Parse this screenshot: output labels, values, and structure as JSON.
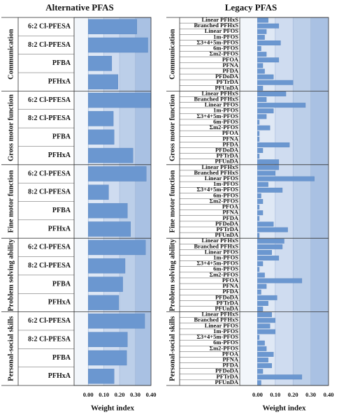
{
  "chart_data": [
    {
      "type": "bar",
      "title": "Alternative PFAS",
      "xlabel": "Weight index",
      "color": "#6b97d0",
      "xlim": [
        -0.09,
        0.4
      ],
      "xticks": [
        {
          "value": 0,
          "label": "0.00"
        },
        {
          "value": 0.1,
          "label": "0.10"
        },
        {
          "value": 0.2,
          "label": "0.20"
        },
        {
          "value": 0.3,
          "label": "0.30"
        },
        {
          "value": 0.4,
          "label": "0.40"
        }
      ],
      "groups": [
        {
          "name": "Communication",
          "categories": [
            "6:2 Cl-PFESA",
            "8:2 Cl-PFESA",
            "PFBA",
            "PFHxA"
          ],
          "values": [
            0.31,
            0.38,
            0.15,
            0.19
          ]
        },
        {
          "name": "Gross motor function",
          "categories": [
            "6:2 Cl-PFESA",
            "8:2 Cl-PFESA",
            "PFBA",
            "PFHxA"
          ],
          "values": [
            0.4,
            0.16,
            0.165,
            0.285
          ]
        },
        {
          "name": "Fine motor function",
          "categories": [
            "6:2 Cl-PFESA",
            "8:2 Cl-PFESA",
            "PFBA",
            "PFHxA"
          ],
          "values": [
            0.37,
            0.13,
            0.25,
            0.27
          ]
        },
        {
          "name": "Problem solving ability",
          "categories": [
            "6:2 Cl-PFESA",
            "8:2 Cl-PFESA",
            "PFBA",
            "PFHxA"
          ],
          "values": [
            0.365,
            0.235,
            0.22,
            0.195
          ]
        },
        {
          "name": "Personal-social skills",
          "categories": [
            "6:2 Cl-PFESA",
            "8:2 Cl-PFESA",
            "PFBA",
            "PFHxA"
          ],
          "values": [
            0.36,
            0.25,
            0.245,
            0.165
          ]
        }
      ]
    },
    {
      "type": "bar",
      "title": "Legacy  PFAS",
      "xlabel": "Weight index",
      "color": "#6b97d0",
      "xlim": [
        -0.1,
        0.4
      ],
      "xticks": [
        {
          "value": 0,
          "label": "0.00"
        },
        {
          "value": 0.1,
          "label": "0.10"
        },
        {
          "value": 0.2,
          "label": "0.20"
        },
        {
          "value": 0.3,
          "label": "0.30"
        },
        {
          "value": 0.4,
          "label": "0.40"
        }
      ],
      "groups": [
        {
          "name": "Communication",
          "categories": [
            "Linear PFHxS",
            "Branched PFHxS",
            "Linear PFOS",
            "1m-PFOS",
            "Σ3+4+5m-PFOS",
            "6m-PFOS",
            "Σm2-PFOS",
            "PFOA",
            "PFNA",
            "PFDA",
            "PFDoDA",
            "PFTrDA",
            "PFUnDA"
          ],
          "values": [
            0.06,
            0.12,
            0.05,
            0.04,
            0.13,
            0.02,
            0.05,
            0.12,
            0.03,
            0.04,
            0.09,
            0.2,
            0.03
          ]
        },
        {
          "name": "Gross motor function",
          "categories": [
            "Linear PFHxS",
            "Branched PFHxS",
            "Linear PFOS",
            "1m-PFOS",
            "Σ3+4+5m-PFOS",
            "6m-PFOS",
            "Σm2-PFOS",
            "PFOA",
            "PFNA",
            "PFDA",
            "PFDoDA",
            "PFTrDA",
            "PFUnDA"
          ],
          "values": [
            0.16,
            0.05,
            0.27,
            0.09,
            0.05,
            0.01,
            0.07,
            0.01,
            0.01,
            0.18,
            0.03,
            0.01,
            0.12
          ]
        },
        {
          "name": "Fine motor function",
          "categories": [
            "Linear PFHxS",
            "Branched PFHxS",
            "Linear PFOS",
            "1m-PFOS",
            "Σ3+4+5m-PFOS",
            "6m-PFOS",
            "Σm2-PFOS",
            "PFOA",
            "PFNA",
            "PFDA",
            "PFDoDA",
            "PFTrDA",
            "PFUnDA"
          ],
          "values": [
            0.12,
            0.1,
            0.32,
            0.06,
            0.14,
            0.02,
            0.03,
            0.01,
            0.03,
            0.01,
            0.09,
            0.17,
            0.01
          ]
        },
        {
          "name": "Problem solving ability",
          "categories": [
            "Linear PFHxS",
            "Branched PFHxS",
            "Linear PFOS",
            "1m-PFOS",
            "Σ3+4+5m-PFOS",
            "6m-PFOS",
            "Σm2-PFOS",
            "PFOA",
            "PFNA",
            "PFDA",
            "PFDoDA",
            "PFTrDA",
            "PFUnDA"
          ],
          "values": [
            0.15,
            0.14,
            0.08,
            0.12,
            0.03,
            0.01,
            0.04,
            0.25,
            0.05,
            0.02,
            0.11,
            0.06,
            0.03
          ]
        },
        {
          "name": "Personal-social skills",
          "categories": [
            "Linear PFHxS",
            "Branched PFHxS",
            "Linear PFOS",
            "1m-PFOS",
            "Σ3+4+5m-PFOS",
            "6m-PFOS",
            "Σm2-PFOS",
            "PFOA",
            "PFNA",
            "PFDA",
            "PFDoDA",
            "PFTrDA",
            "PFUnDA"
          ],
          "values": [
            0.08,
            0.1,
            0.07,
            0.1,
            0.01,
            0.04,
            0.05,
            0.09,
            0.06,
            0.08,
            0.03,
            0.25,
            0.02
          ]
        }
      ]
    }
  ]
}
